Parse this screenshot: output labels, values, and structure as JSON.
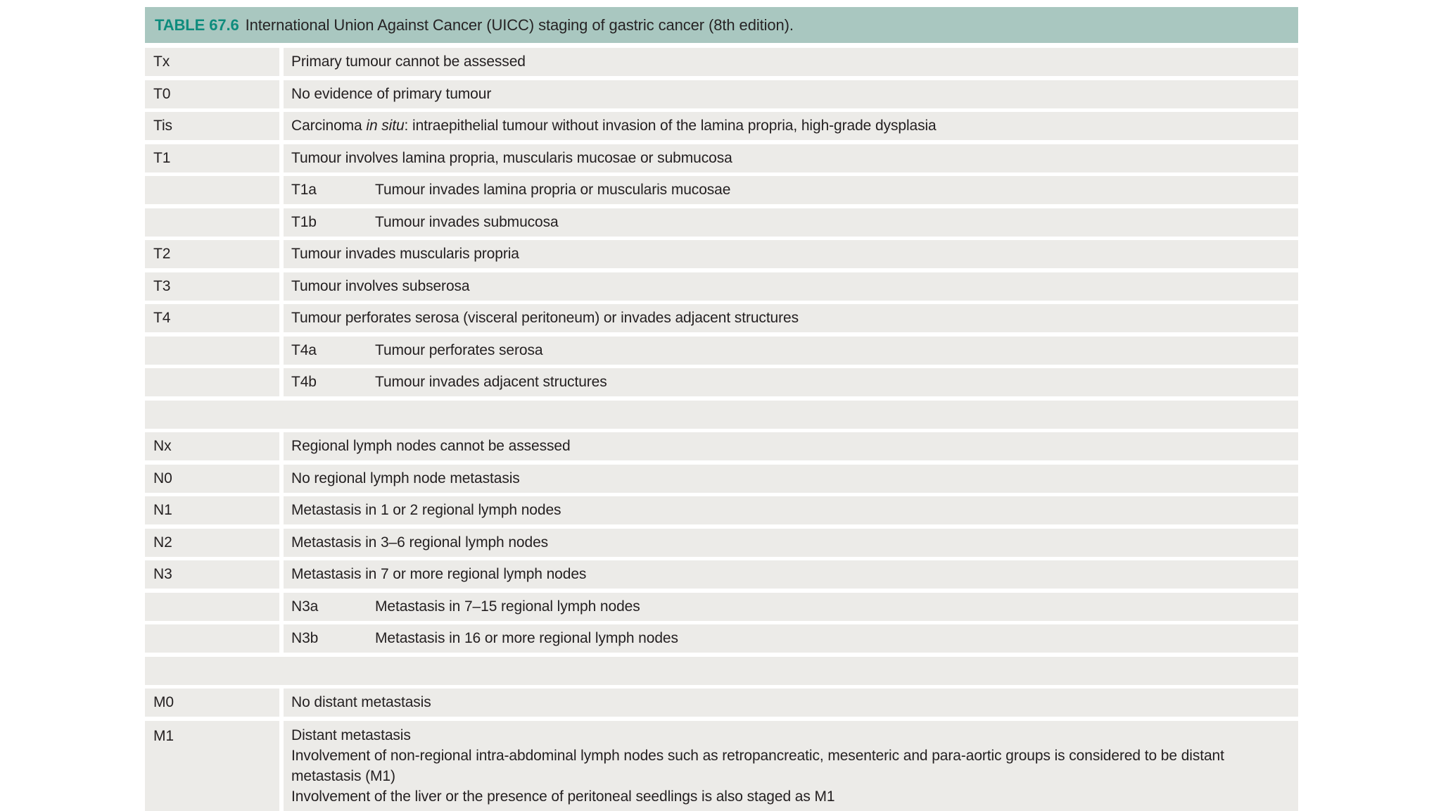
{
  "table": {
    "label": "TABLE 67.6",
    "title": "International Union Against Cancer (UICC) staging of gastric cancer (8th edition).",
    "colors": {
      "header_bg": "#a9c7c0",
      "label_accent": "#0e8c7d",
      "row_bg": "#ecebe8",
      "text": "#231f20"
    },
    "rows": [
      {
        "type": "main",
        "code": "Tx",
        "desc": "Primary tumour cannot be assessed"
      },
      {
        "type": "main",
        "code": "T0",
        "desc": "No evidence of primary tumour"
      },
      {
        "type": "main",
        "code": "Tis",
        "desc_parts": [
          [
            "Carcinoma ",
            false
          ],
          [
            "in situ",
            true
          ],
          [
            ": intraepithelial tumour without invasion of the lamina propria, high-grade dysplasia",
            false
          ]
        ]
      },
      {
        "type": "main",
        "code": "T1",
        "desc": "Tumour involves lamina propria, muscularis mucosae or submucosa"
      },
      {
        "type": "sub",
        "code": "T1a",
        "desc": "Tumour invades lamina propria or muscularis mucosae"
      },
      {
        "type": "sub",
        "code": "T1b",
        "desc": "Tumour invades submucosa"
      },
      {
        "type": "main",
        "code": "T2",
        "desc": "Tumour invades muscularis propria"
      },
      {
        "type": "main",
        "code": "T3",
        "desc": "Tumour involves subserosa"
      },
      {
        "type": "main",
        "code": "T4",
        "desc": "Tumour perforates serosa (visceral peritoneum) or invades adjacent structures"
      },
      {
        "type": "sub",
        "code": "T4a",
        "desc": "Tumour perforates serosa"
      },
      {
        "type": "sub",
        "code": "T4b",
        "desc": "Tumour invades adjacent structures"
      },
      {
        "type": "spacer"
      },
      {
        "type": "main",
        "code": "Nx",
        "desc": "Regional lymph nodes cannot be assessed"
      },
      {
        "type": "main",
        "code": "N0",
        "desc": "No regional lymph node metastasis"
      },
      {
        "type": "main",
        "code": "N1",
        "desc": "Metastasis in 1 or 2 regional lymph nodes"
      },
      {
        "type": "main",
        "code": "N2",
        "desc": "Metastasis in 3–6 regional lymph nodes"
      },
      {
        "type": "main",
        "code": "N3",
        "desc": "Metastasis in 7 or more regional lymph nodes"
      },
      {
        "type": "sub",
        "code": "N3a",
        "desc": "Metastasis in 7–15 regional lymph nodes"
      },
      {
        "type": "sub",
        "code": "N3b",
        "desc": "Metastasis in 16 or more regional lymph nodes"
      },
      {
        "type": "spacer"
      },
      {
        "type": "main",
        "code": "M0",
        "desc": "No distant metastasis"
      },
      {
        "type": "main",
        "code": "M1",
        "desc_lines": [
          "Distant metastasis",
          "Involvement of non-regional intra-abdominal lymph nodes such as retropancreatic, mesenteric and para-aortic groups is considered to be distant metastasis (M1)",
          "Involvement of the liver or the presence of peritoneal seedlings is also staged as M1"
        ]
      }
    ]
  }
}
